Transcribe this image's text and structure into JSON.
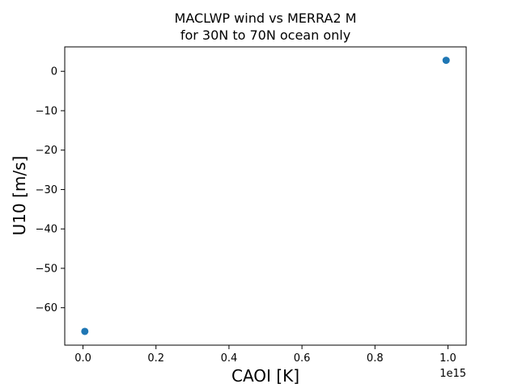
{
  "chart_data": {
    "type": "scatter",
    "title": [
      "MACLWP wind vs MERRA2 M",
      "for 30N to 70N ocean only"
    ],
    "xlabel": "CAOI [K]",
    "ylabel": "U10 [m/s]",
    "x_offset_label": "1e15",
    "xlim": [
      -0.05,
      1.05
    ],
    "ylim": [
      -69.5,
      6.2
    ],
    "xticks": [
      0.0,
      0.2,
      0.4,
      0.6,
      0.8,
      1.0
    ],
    "xtick_labels": [
      "0.0",
      "0.2",
      "0.4",
      "0.6",
      "0.8",
      "1.0"
    ],
    "yticks": [
      0,
      -10,
      -20,
      -30,
      -40,
      -50,
      -60
    ],
    "ytick_labels": [
      "0",
      "−10",
      "−20",
      "−30",
      "−40",
      "−50",
      "−60"
    ],
    "grid": false,
    "series": [
      {
        "color": "#1f77b4",
        "marker": "circle",
        "points": [
          {
            "x": 0.005,
            "y": -66.0
          },
          {
            "x": 0.995,
            "y": 2.8
          }
        ]
      }
    ]
  }
}
